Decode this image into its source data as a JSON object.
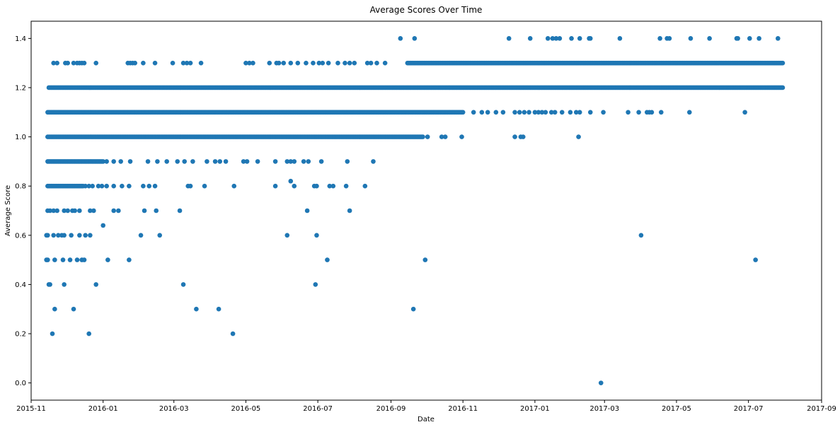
{
  "chart_data": {
    "type": "scatter",
    "title": "Average Scores Over Time",
    "xlabel": "Date",
    "ylabel": "Average Score",
    "x_type": "date",
    "xlim": [
      "2015-11-01",
      "2017-09-01"
    ],
    "ylim": [
      -0.07,
      1.47
    ],
    "xticks": [
      "2015-11",
      "2016-01",
      "2016-03",
      "2016-05",
      "2016-07",
      "2016-09",
      "2016-11",
      "2017-01",
      "2017-03",
      "2017-05",
      "2017-07",
      "2017-09"
    ],
    "yticks": [
      "0.0",
      "0.2",
      "0.4",
      "0.6",
      "0.8",
      "1.0",
      "1.2",
      "1.4"
    ],
    "grid": false,
    "legend": "none",
    "color": "#1f77b4",
    "bands": [
      {
        "y": 1.0,
        "start": "2015-11-15",
        "end": "2016-09-28",
        "step": 1
      },
      {
        "y": 1.1,
        "start": "2015-11-15",
        "end": "2016-11-01",
        "step": 1
      },
      {
        "y": 1.2,
        "start": "2015-11-16",
        "end": "2017-07-30",
        "step": 1
      },
      {
        "y": 1.3,
        "start": "2016-09-15",
        "end": "2017-07-30",
        "step": 1
      },
      {
        "y": 0.9,
        "start": "2015-11-15",
        "end": "2016-01-01",
        "step": 1
      },
      {
        "y": 0.8,
        "start": "2015-11-15",
        "end": "2015-12-15",
        "step": 1
      }
    ],
    "points": [
      {
        "x": "2017-02-26",
        "y": 0.0
      },
      {
        "x": "2015-11-19",
        "y": 0.2
      },
      {
        "x": "2015-12-20",
        "y": 0.2
      },
      {
        "x": "2016-04-20",
        "y": 0.2
      },
      {
        "x": "2015-11-21",
        "y": 0.3
      },
      {
        "x": "2015-12-07",
        "y": 0.3
      },
      {
        "x": "2016-03-20",
        "y": 0.3
      },
      {
        "x": "2016-04-08",
        "y": 0.3
      },
      {
        "x": "2016-09-20",
        "y": 0.3
      },
      {
        "x": "2015-11-16",
        "y": 0.4
      },
      {
        "x": "2015-11-17",
        "y": 0.4
      },
      {
        "x": "2015-11-29",
        "y": 0.4
      },
      {
        "x": "2015-12-26",
        "y": 0.4
      },
      {
        "x": "2016-03-09",
        "y": 0.4
      },
      {
        "x": "2016-06-29",
        "y": 0.4
      },
      {
        "x": "2015-11-14",
        "y": 0.5
      },
      {
        "x": "2015-11-15",
        "y": 0.5
      },
      {
        "x": "2015-11-21",
        "y": 0.5
      },
      {
        "x": "2015-11-28",
        "y": 0.5
      },
      {
        "x": "2015-12-04",
        "y": 0.5
      },
      {
        "x": "2015-12-10",
        "y": 0.5
      },
      {
        "x": "2015-12-14",
        "y": 0.5
      },
      {
        "x": "2015-12-16",
        "y": 0.5
      },
      {
        "x": "2016-01-05",
        "y": 0.5
      },
      {
        "x": "2016-01-23",
        "y": 0.5
      },
      {
        "x": "2016-07-09",
        "y": 0.5
      },
      {
        "x": "2016-09-30",
        "y": 0.5
      },
      {
        "x": "2017-07-07",
        "y": 0.5
      },
      {
        "x": "2015-11-14",
        "y": 0.6
      },
      {
        "x": "2015-11-15",
        "y": 0.6
      },
      {
        "x": "2015-11-20",
        "y": 0.6
      },
      {
        "x": "2015-11-24",
        "y": 0.6
      },
      {
        "x": "2015-11-27",
        "y": 0.6
      },
      {
        "x": "2015-11-29",
        "y": 0.6
      },
      {
        "x": "2015-12-05",
        "y": 0.6
      },
      {
        "x": "2015-12-12",
        "y": 0.6
      },
      {
        "x": "2015-12-17",
        "y": 0.6
      },
      {
        "x": "2015-12-21",
        "y": 0.6
      },
      {
        "x": "2016-02-02",
        "y": 0.6
      },
      {
        "x": "2016-02-18",
        "y": 0.6
      },
      {
        "x": "2016-06-05",
        "y": 0.6
      },
      {
        "x": "2016-06-30",
        "y": 0.6
      },
      {
        "x": "2017-04-01",
        "y": 0.6
      },
      {
        "x": "2016-01-01",
        "y": 0.64
      },
      {
        "x": "2015-11-15",
        "y": 0.7
      },
      {
        "x": "2015-11-17",
        "y": 0.7
      },
      {
        "x": "2015-11-20",
        "y": 0.7
      },
      {
        "x": "2015-11-23",
        "y": 0.7
      },
      {
        "x": "2015-11-29",
        "y": 0.7
      },
      {
        "x": "2015-12-02",
        "y": 0.7
      },
      {
        "x": "2015-12-06",
        "y": 0.7
      },
      {
        "x": "2015-12-08",
        "y": 0.7
      },
      {
        "x": "2015-12-12",
        "y": 0.7
      },
      {
        "x": "2015-12-21",
        "y": 0.7
      },
      {
        "x": "2015-12-24",
        "y": 0.7
      },
      {
        "x": "2016-01-10",
        "y": 0.7
      },
      {
        "x": "2016-01-14",
        "y": 0.7
      },
      {
        "x": "2016-02-05",
        "y": 0.7
      },
      {
        "x": "2016-02-15",
        "y": 0.7
      },
      {
        "x": "2016-03-06",
        "y": 0.7
      },
      {
        "x": "2016-06-22",
        "y": 0.7
      },
      {
        "x": "2016-07-28",
        "y": 0.7
      },
      {
        "x": "2015-12-17",
        "y": 0.8
      },
      {
        "x": "2015-12-20",
        "y": 0.8
      },
      {
        "x": "2015-12-23",
        "y": 0.8
      },
      {
        "x": "2015-12-28",
        "y": 0.8
      },
      {
        "x": "2015-12-31",
        "y": 0.8
      },
      {
        "x": "2016-01-04",
        "y": 0.8
      },
      {
        "x": "2016-01-10",
        "y": 0.8
      },
      {
        "x": "2016-01-17",
        "y": 0.8
      },
      {
        "x": "2016-01-23",
        "y": 0.8
      },
      {
        "x": "2016-02-04",
        "y": 0.8
      },
      {
        "x": "2016-02-09",
        "y": 0.8
      },
      {
        "x": "2016-02-14",
        "y": 0.8
      },
      {
        "x": "2016-03-13",
        "y": 0.8
      },
      {
        "x": "2016-03-15",
        "y": 0.8
      },
      {
        "x": "2016-03-27",
        "y": 0.8
      },
      {
        "x": "2016-04-21",
        "y": 0.8
      },
      {
        "x": "2016-05-26",
        "y": 0.8
      },
      {
        "x": "2016-06-11",
        "y": 0.8
      },
      {
        "x": "2016-06-28",
        "y": 0.8
      },
      {
        "x": "2016-06-30",
        "y": 0.8
      },
      {
        "x": "2016-07-11",
        "y": 0.8
      },
      {
        "x": "2016-07-14",
        "y": 0.8
      },
      {
        "x": "2016-07-25",
        "y": 0.8
      },
      {
        "x": "2016-08-10",
        "y": 0.8
      },
      {
        "x": "2016-06-08",
        "y": 0.82
      },
      {
        "x": "2016-01-04",
        "y": 0.9
      },
      {
        "x": "2016-01-10",
        "y": 0.9
      },
      {
        "x": "2016-01-16",
        "y": 0.9
      },
      {
        "x": "2016-01-24",
        "y": 0.9
      },
      {
        "x": "2016-02-08",
        "y": 0.9
      },
      {
        "x": "2016-02-16",
        "y": 0.9
      },
      {
        "x": "2016-02-24",
        "y": 0.9
      },
      {
        "x": "2016-03-04",
        "y": 0.9
      },
      {
        "x": "2016-03-10",
        "y": 0.9
      },
      {
        "x": "2016-03-17",
        "y": 0.9
      },
      {
        "x": "2016-03-29",
        "y": 0.9
      },
      {
        "x": "2016-04-05",
        "y": 0.9
      },
      {
        "x": "2016-04-09",
        "y": 0.9
      },
      {
        "x": "2016-04-14",
        "y": 0.9
      },
      {
        "x": "2016-04-29",
        "y": 0.9
      },
      {
        "x": "2016-05-02",
        "y": 0.9
      },
      {
        "x": "2016-05-11",
        "y": 0.9
      },
      {
        "x": "2016-05-26",
        "y": 0.9
      },
      {
        "x": "2016-06-05",
        "y": 0.9
      },
      {
        "x": "2016-06-08",
        "y": 0.9
      },
      {
        "x": "2016-06-11",
        "y": 0.9
      },
      {
        "x": "2016-06-19",
        "y": 0.9
      },
      {
        "x": "2016-06-23",
        "y": 0.9
      },
      {
        "x": "2016-07-04",
        "y": 0.9
      },
      {
        "x": "2016-07-26",
        "y": 0.9
      },
      {
        "x": "2016-08-17",
        "y": 0.9
      },
      {
        "x": "2016-10-02",
        "y": 1.0
      },
      {
        "x": "2016-10-14",
        "y": 1.0
      },
      {
        "x": "2016-10-17",
        "y": 1.0
      },
      {
        "x": "2016-10-31",
        "y": 1.0
      },
      {
        "x": "2016-12-15",
        "y": 1.0
      },
      {
        "x": "2016-12-20",
        "y": 1.0
      },
      {
        "x": "2016-12-22",
        "y": 1.0
      },
      {
        "x": "2017-02-07",
        "y": 1.0
      },
      {
        "x": "2016-11-10",
        "y": 1.1
      },
      {
        "x": "2016-11-17",
        "y": 1.1
      },
      {
        "x": "2016-11-22",
        "y": 1.1
      },
      {
        "x": "2016-11-29",
        "y": 1.1
      },
      {
        "x": "2016-12-05",
        "y": 1.1
      },
      {
        "x": "2016-12-15",
        "y": 1.1
      },
      {
        "x": "2016-12-19",
        "y": 1.1
      },
      {
        "x": "2016-12-23",
        "y": 1.1
      },
      {
        "x": "2016-12-27",
        "y": 1.1
      },
      {
        "x": "2017-01-01",
        "y": 1.1
      },
      {
        "x": "2017-01-04",
        "y": 1.1
      },
      {
        "x": "2017-01-07",
        "y": 1.1
      },
      {
        "x": "2017-01-10",
        "y": 1.1
      },
      {
        "x": "2017-01-15",
        "y": 1.1
      },
      {
        "x": "2017-01-18",
        "y": 1.1
      },
      {
        "x": "2017-01-24",
        "y": 1.1
      },
      {
        "x": "2017-01-31",
        "y": 1.1
      },
      {
        "x": "2017-02-05",
        "y": 1.1
      },
      {
        "x": "2017-02-08",
        "y": 1.1
      },
      {
        "x": "2017-02-17",
        "y": 1.1
      },
      {
        "x": "2017-02-28",
        "y": 1.1
      },
      {
        "x": "2017-03-21",
        "y": 1.1
      },
      {
        "x": "2017-03-30",
        "y": 1.1
      },
      {
        "x": "2017-04-06",
        "y": 1.1
      },
      {
        "x": "2017-04-08",
        "y": 1.1
      },
      {
        "x": "2017-04-10",
        "y": 1.1
      },
      {
        "x": "2017-04-18",
        "y": 1.1
      },
      {
        "x": "2017-05-12",
        "y": 1.1
      },
      {
        "x": "2017-06-28",
        "y": 1.1
      },
      {
        "x": "2015-11-20",
        "y": 1.3
      },
      {
        "x": "2015-11-23",
        "y": 1.3
      },
      {
        "x": "2015-11-30",
        "y": 1.3
      },
      {
        "x": "2015-12-02",
        "y": 1.3
      },
      {
        "x": "2015-12-07",
        "y": 1.3
      },
      {
        "x": "2015-12-10",
        "y": 1.3
      },
      {
        "x": "2015-12-12",
        "y": 1.3
      },
      {
        "x": "2015-12-14",
        "y": 1.3
      },
      {
        "x": "2015-12-16",
        "y": 1.3
      },
      {
        "x": "2015-12-26",
        "y": 1.3
      },
      {
        "x": "2016-01-22",
        "y": 1.3
      },
      {
        "x": "2016-01-24",
        "y": 1.3
      },
      {
        "x": "2016-01-26",
        "y": 1.3
      },
      {
        "x": "2016-01-28",
        "y": 1.3
      },
      {
        "x": "2016-02-04",
        "y": 1.3
      },
      {
        "x": "2016-02-14",
        "y": 1.3
      },
      {
        "x": "2016-02-29",
        "y": 1.3
      },
      {
        "x": "2016-03-09",
        "y": 1.3
      },
      {
        "x": "2016-03-12",
        "y": 1.3
      },
      {
        "x": "2016-03-15",
        "y": 1.3
      },
      {
        "x": "2016-03-24",
        "y": 1.3
      },
      {
        "x": "2016-05-01",
        "y": 1.3
      },
      {
        "x": "2016-05-04",
        "y": 1.3
      },
      {
        "x": "2016-05-07",
        "y": 1.3
      },
      {
        "x": "2016-05-21",
        "y": 1.3
      },
      {
        "x": "2016-05-27",
        "y": 1.3
      },
      {
        "x": "2016-05-29",
        "y": 1.3
      },
      {
        "x": "2016-06-02",
        "y": 1.3
      },
      {
        "x": "2016-06-08",
        "y": 1.3
      },
      {
        "x": "2016-06-14",
        "y": 1.3
      },
      {
        "x": "2016-06-21",
        "y": 1.3
      },
      {
        "x": "2016-06-27",
        "y": 1.3
      },
      {
        "x": "2016-07-02",
        "y": 1.3
      },
      {
        "x": "2016-07-05",
        "y": 1.3
      },
      {
        "x": "2016-07-10",
        "y": 1.3
      },
      {
        "x": "2016-07-18",
        "y": 1.3
      },
      {
        "x": "2016-07-24",
        "y": 1.3
      },
      {
        "x": "2016-07-28",
        "y": 1.3
      },
      {
        "x": "2016-08-01",
        "y": 1.3
      },
      {
        "x": "2016-08-12",
        "y": 1.3
      },
      {
        "x": "2016-08-15",
        "y": 1.3
      },
      {
        "x": "2016-08-20",
        "y": 1.3
      },
      {
        "x": "2016-08-27",
        "y": 1.3
      },
      {
        "x": "2016-09-09",
        "y": 1.4
      },
      {
        "x": "2016-09-21",
        "y": 1.4
      },
      {
        "x": "2016-12-10",
        "y": 1.4
      },
      {
        "x": "2016-12-28",
        "y": 1.4
      },
      {
        "x": "2017-01-12",
        "y": 1.4
      },
      {
        "x": "2017-01-16",
        "y": 1.4
      },
      {
        "x": "2017-01-19",
        "y": 1.4
      },
      {
        "x": "2017-01-22",
        "y": 1.4
      },
      {
        "x": "2017-02-01",
        "y": 1.4
      },
      {
        "x": "2017-02-08",
        "y": 1.4
      },
      {
        "x": "2017-02-16",
        "y": 1.4
      },
      {
        "x": "2017-02-17",
        "y": 1.4
      },
      {
        "x": "2017-03-14",
        "y": 1.4
      },
      {
        "x": "2017-04-17",
        "y": 1.4
      },
      {
        "x": "2017-04-23",
        "y": 1.4
      },
      {
        "x": "2017-04-25",
        "y": 1.4
      },
      {
        "x": "2017-05-13",
        "y": 1.4
      },
      {
        "x": "2017-05-29",
        "y": 1.4
      },
      {
        "x": "2017-06-21",
        "y": 1.4
      },
      {
        "x": "2017-06-22",
        "y": 1.4
      },
      {
        "x": "2017-07-02",
        "y": 1.4
      },
      {
        "x": "2017-07-10",
        "y": 1.4
      },
      {
        "x": "2017-07-26",
        "y": 1.4
      }
    ]
  }
}
